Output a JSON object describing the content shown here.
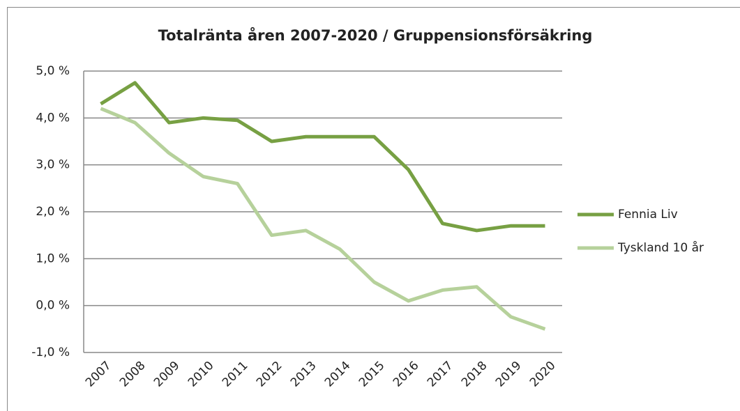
{
  "chart_data": {
    "type": "line",
    "title": "Totalränta åren 2007-2020 / Gruppensionsförsäkring",
    "categories": [
      "2007",
      "2008",
      "2009",
      "2010",
      "2011",
      "2012",
      "2013",
      "2014",
      "2015",
      "2016",
      "2017",
      "2018",
      "2019",
      "2020"
    ],
    "series": [
      {
        "name": "Fennia Liv",
        "color": "#77a043",
        "values": [
          4.3,
          4.75,
          3.9,
          4.0,
          3.95,
          3.5,
          3.6,
          3.6,
          3.6,
          2.9,
          1.75,
          1.6,
          1.7,
          1.7
        ]
      },
      {
        "name": "Tyskland 10 år",
        "color": "#b6d19b",
        "values": [
          4.2,
          3.9,
          3.25,
          2.75,
          2.6,
          1.5,
          1.6,
          1.2,
          0.5,
          0.1,
          0.33,
          0.4,
          -0.24,
          -0.5
        ]
      }
    ],
    "ylim": [
      -1,
      5
    ],
    "yticks": [
      {
        "value": -1,
        "label": "-1,0 %"
      },
      {
        "value": 0,
        "label": "0,0 %"
      },
      {
        "value": 1,
        "label": "1,0 %"
      },
      {
        "value": 2,
        "label": "2,0 %"
      },
      {
        "value": 3,
        "label": "3,0 %"
      },
      {
        "value": 4,
        "label": "4,0 %"
      },
      {
        "value": 5,
        "label": "5,0 %"
      }
    ],
    "grid": true,
    "legend": "right"
  }
}
